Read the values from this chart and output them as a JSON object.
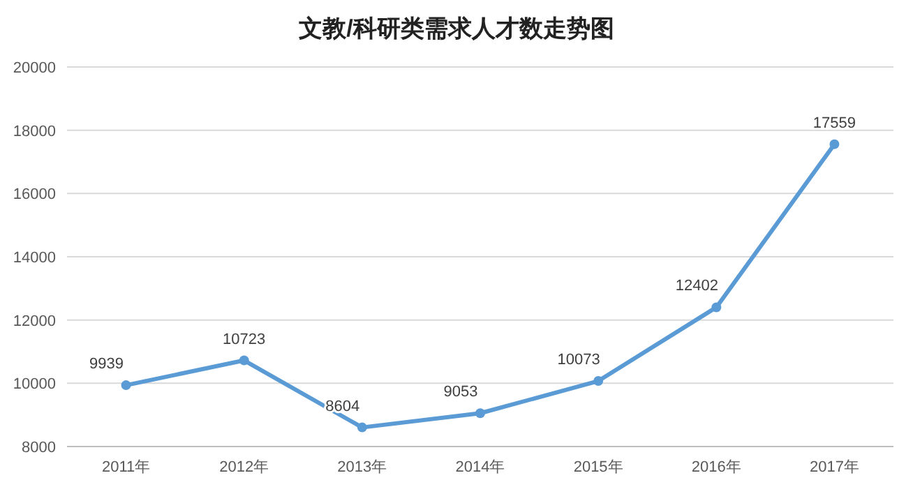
{
  "chart_data": {
    "type": "line",
    "title": "文教/科研类需求人才数走势图",
    "categories": [
      "2011年",
      "2012年",
      "2013年",
      "2014年",
      "2015年",
      "2016年",
      "2017年"
    ],
    "series": [
      {
        "color": "#5b9bd5",
        "values": [
          9939,
          10723,
          8604,
          9053,
          10073,
          12402,
          17559
        ]
      }
    ],
    "ylim": [
      8000,
      20000
    ],
    "yticks": [
      8000,
      10000,
      12000,
      14000,
      16000,
      18000,
      20000
    ],
    "grid": "y",
    "marker": "circle",
    "line_style": "solid",
    "data_labels": true
  }
}
